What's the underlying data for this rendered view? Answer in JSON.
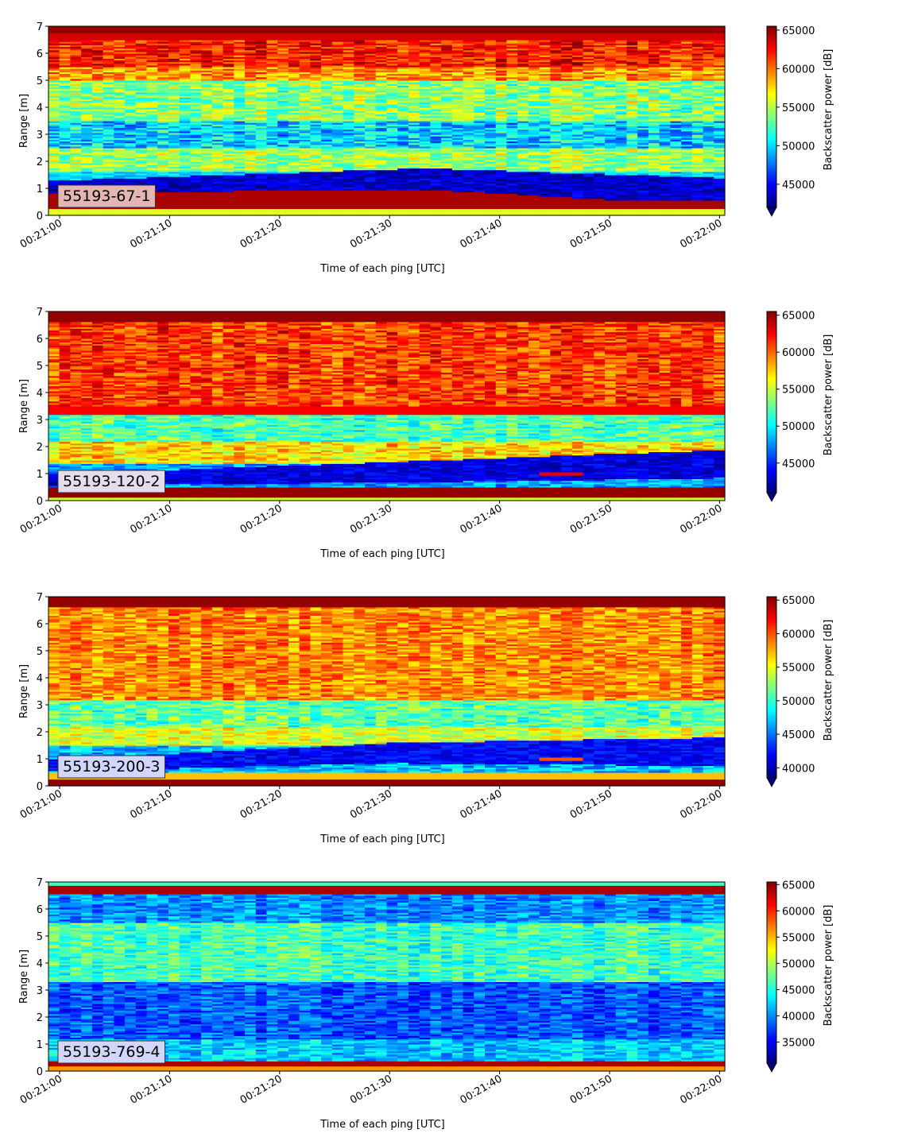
{
  "colors": {
    "colormap": "jet",
    "colormap_stops": [
      "#00007f",
      "#0000ff",
      "#007fff",
      "#00ffff",
      "#7fff7f",
      "#ffff00",
      "#ff7f00",
      "#ff0000",
      "#7f0000"
    ],
    "tag_box_panel_1": "#e3b6b4",
    "tag_box_panel_2": "#e5dcee",
    "tag_box_panel_3": "#d3d6fb",
    "tag_box_panel_4": "#d3d6fb"
  },
  "chart_data": [
    {
      "type": "heatmap",
      "tag": "55193-67-1",
      "xlabel": "Time of each ping [UTC]",
      "ylabel": "Range [m]",
      "colorbar_label": "Backscatter power [dB]",
      "xticks": [
        "00:21:00",
        "00:21:10",
        "00:21:20",
        "00:21:30",
        "00:21:40",
        "00:21:50",
        "00:22:00"
      ],
      "xlim": [
        "00:21:00",
        "00:22:00"
      ],
      "yticks": [
        0,
        1,
        2,
        3,
        4,
        5,
        6,
        7
      ],
      "ylim": [
        0,
        7
      ],
      "colorbar_ticks": [
        45000,
        50000,
        55000,
        60000,
        65000
      ],
      "color_range": [
        42000,
        65500
      ],
      "colorbar_extend": "min",
      "layers": [
        {
          "y": [
            6.75,
            7.0
          ],
          "value": 65000
        },
        {
          "y": [
            6.5,
            6.75
          ],
          "value": 63500
        },
        {
          "y": [
            5.5,
            6.5
          ],
          "value": 62000,
          "noise": 3500
        },
        {
          "y": [
            5.0,
            5.5
          ],
          "value": 59000,
          "noise": 3500
        },
        {
          "y": [
            3.5,
            5.0
          ],
          "value": 54000,
          "noise": 4000
        },
        {
          "y": [
            2.5,
            3.5
          ],
          "value": 50000,
          "noise": 4000
        },
        {
          "y": [
            1.6,
            2.5
          ],
          "value": 54500,
          "noise": 3500
        },
        {
          "y": [
            1.3,
            1.6
          ],
          "value": 50000,
          "noise": 2000
        },
        {
          "y": [
            1.0,
            1.3
          ],
          "value": 48000
        },
        {
          "y": [
            0.25,
            1.0
          ],
          "value": 64500
        },
        {
          "y": [
            0.0,
            0.25
          ],
          "value": 56000
        }
      ],
      "trough": {
        "y_start": 1.3,
        "y_end": 1.4,
        "y_peak": 1.75,
        "time_peak": "00:21:33",
        "value": 42000
      }
    },
    {
      "type": "heatmap",
      "tag": "55193-120-2",
      "xlabel": "Time of each ping [UTC]",
      "ylabel": "Range [m]",
      "colorbar_label": "Backscatter power [dB]",
      "xticks": [
        "00:21:00",
        "00:21:10",
        "00:21:20",
        "00:21:30",
        "00:21:40",
        "00:21:50",
        "00:22:00"
      ],
      "xlim": [
        "00:21:00",
        "00:22:00"
      ],
      "yticks": [
        0,
        1,
        2,
        3,
        4,
        5,
        6,
        7
      ],
      "ylim": [
        0,
        7
      ],
      "colorbar_ticks": [
        45000,
        50000,
        55000,
        60000,
        65000
      ],
      "color_range": [
        41000,
        65500
      ],
      "colorbar_extend": "min",
      "layers": [
        {
          "y": [
            6.6,
            7.0
          ],
          "value": 65000
        },
        {
          "y": [
            3.2,
            6.6
          ],
          "value": 61000,
          "noise": 3500
        },
        {
          "y": [
            3.2,
            3.5
          ],
          "value": 62500
        },
        {
          "y": [
            2.2,
            3.2
          ],
          "value": 52000,
          "noise": 3500
        },
        {
          "y": [
            1.4,
            2.2
          ],
          "value": 57000,
          "noise": 3500
        },
        {
          "y": [
            0.5,
            1.4
          ],
          "value": 48000,
          "noise": 3000
        },
        {
          "y": [
            0.1,
            0.5
          ],
          "value": 65000
        },
        {
          "y": [
            0.0,
            0.1
          ],
          "value": 55000
        }
      ],
      "trough": {
        "y_start": 1.0,
        "y_end": 1.9,
        "y_peak": 1.85,
        "time_peak": "00:21:58",
        "value": 41500
      },
      "patch": {
        "y": [
          0.95,
          1.05
        ],
        "time": [
          "00:21:44",
          "00:21:48"
        ],
        "value": 63000
      }
    },
    {
      "type": "heatmap",
      "tag": "55193-200-3",
      "xlabel": "Time of each ping [UTC]",
      "ylabel": "Range [m]",
      "colorbar_label": "Backscatter power [dB]",
      "xticks": [
        "00:21:00",
        "00:21:10",
        "00:21:20",
        "00:21:30",
        "00:21:40",
        "00:21:50",
        "00:22:00"
      ],
      "xlim": [
        "00:21:00",
        "00:22:00"
      ],
      "yticks": [
        0,
        1,
        2,
        3,
        4,
        5,
        6,
        7
      ],
      "ylim": [
        0,
        7
      ],
      "colorbar_ticks": [
        40000,
        45000,
        50000,
        55000,
        60000,
        65000
      ],
      "color_range": [
        38500,
        65500
      ],
      "colorbar_extend": "min",
      "layers": [
        {
          "y": [
            6.6,
            7.0
          ],
          "value": 65000
        },
        {
          "y": [
            3.2,
            6.6
          ],
          "value": 58500,
          "noise": 3500
        },
        {
          "y": [
            2.2,
            3.2
          ],
          "value": 51000,
          "noise": 4000
        },
        {
          "y": [
            1.5,
            2.2
          ],
          "value": 54500,
          "noise": 3500
        },
        {
          "y": [
            0.5,
            1.5
          ],
          "value": 47000,
          "noise": 3500
        },
        {
          "y": [
            0.25,
            0.5
          ],
          "value": 57000
        },
        {
          "y": [
            0.0,
            0.25
          ],
          "value": 65000
        }
      ],
      "trough": {
        "y_start": 1.0,
        "y_end": 1.8,
        "y_peak": 1.6,
        "time_peak": "00:21:30",
        "value": 40000
      },
      "patch": {
        "y": [
          0.95,
          1.05
        ],
        "time": [
          "00:21:44",
          "00:21:48"
        ],
        "value": 60000
      }
    },
    {
      "type": "heatmap",
      "tag": "55193-769-4",
      "xlabel": "Time of each ping [UTC]",
      "ylabel": "Range [m]",
      "colorbar_label": "Backscatter power [dB]",
      "xticks": [
        "00:21:00",
        "00:21:10",
        "00:21:20",
        "00:21:30",
        "00:21:40",
        "00:21:50",
        "00:22:00"
      ],
      "xlim": [
        "00:21:00",
        "00:22:00"
      ],
      "yticks": [
        0,
        1,
        2,
        3,
        4,
        5,
        6,
        7
      ],
      "ylim": [
        0,
        7
      ],
      "colorbar_ticks": [
        35000,
        40000,
        45000,
        50000,
        55000,
        60000,
        65000
      ],
      "color_range": [
        31000,
        65500
      ],
      "colorbar_extend": "min",
      "layers": [
        {
          "y": [
            6.85,
            7.0
          ],
          "value": 46000
        },
        {
          "y": [
            6.55,
            6.85
          ],
          "value": 64000
        },
        {
          "y": [
            5.5,
            6.55
          ],
          "value": 40000,
          "noise": 4000
        },
        {
          "y": [
            3.3,
            5.5
          ],
          "value": 46000,
          "noise": 4500
        },
        {
          "y": [
            1.2,
            3.3
          ],
          "value": 38000,
          "noise": 4000
        },
        {
          "y": [
            0.35,
            1.2
          ],
          "value": 42000,
          "noise": 4000
        },
        {
          "y": [
            0.2,
            0.35
          ],
          "value": 64000
        },
        {
          "y": [
            0.0,
            0.2
          ],
          "value": 56000
        }
      ]
    }
  ]
}
